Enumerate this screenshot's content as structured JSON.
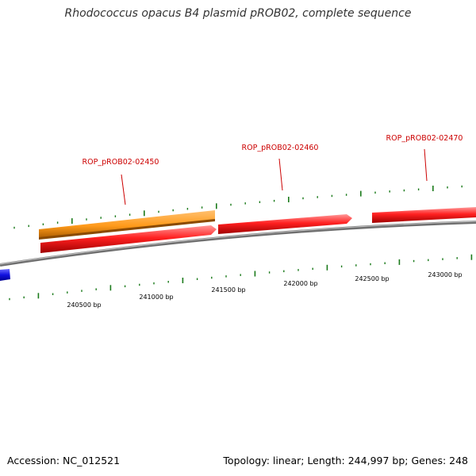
{
  "title": "Rhodococcus opacus B4 plasmid pROB02, complete sequence",
  "colors": {
    "backbone": "#8c8c8c",
    "cds_forward": "#ff1a1a",
    "gene_highlight": "#ff9a1a",
    "cds_reverse": "#1010e0",
    "ticks": "#1a7a1a",
    "gene_label": "#cc0000"
  },
  "genes": [
    {
      "label": "ROP_pROB02-02450"
    },
    {
      "label": "ROP_pROB02-02460"
    },
    {
      "label": "ROP_pROB02-02470"
    }
  ],
  "scale_labels": [
    "240500 bp",
    "241000 bp",
    "241500 bp",
    "242000 bp",
    "242500 bp",
    "243000 bp"
  ],
  "footer": {
    "accession": "Accession: NC_012521",
    "summary": "Topology: linear; Length: 244,997 bp; Genes: 248"
  }
}
